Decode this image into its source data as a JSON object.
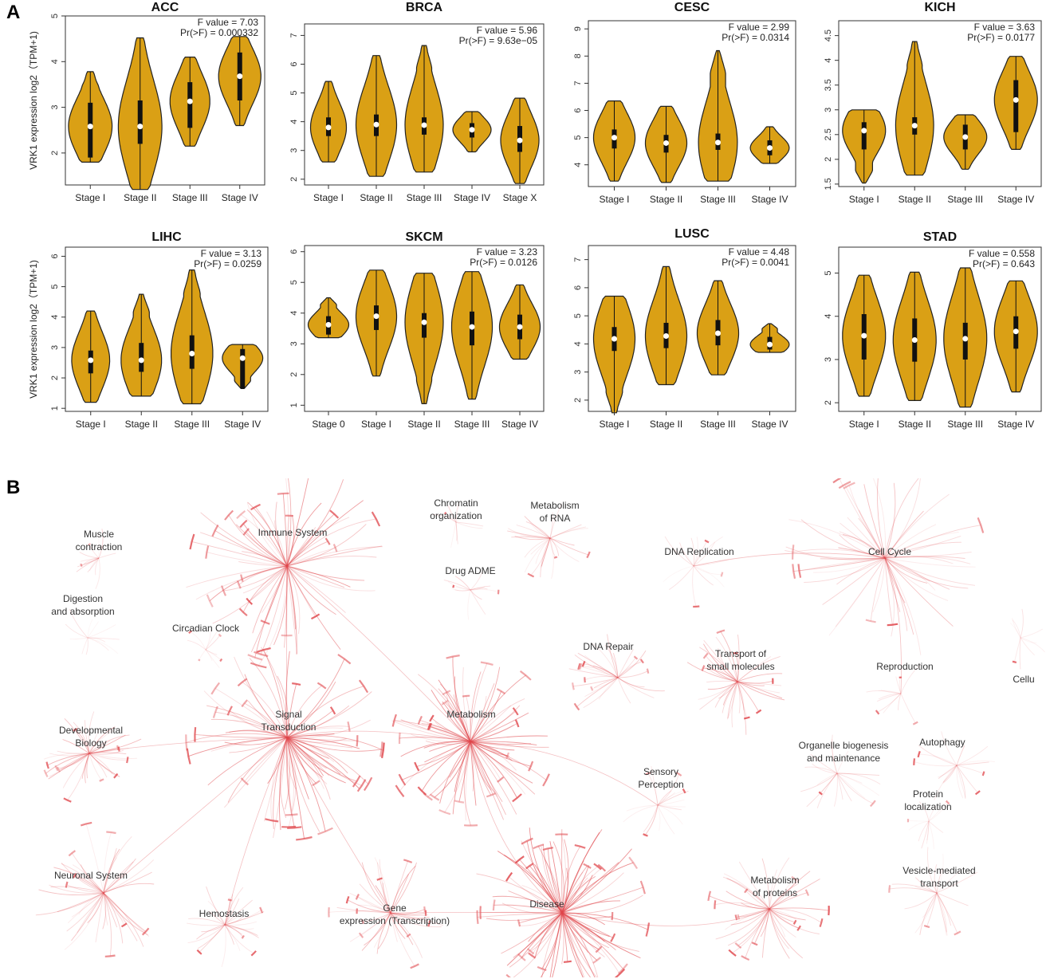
{
  "panels": {
    "a": "A",
    "b": "B"
  },
  "colors": {
    "violin_fill": "#DAA015",
    "violin_stroke": "#222222",
    "pathway": "#E0474C"
  },
  "chart_data": [
    {
      "type": "violin",
      "title": "ACC",
      "ylabel": "VRK1 expression log2（TPM+1)",
      "f_value": "F value = 7.03",
      "p_value": "Pr(>F) = 0.000332",
      "ylim": [
        1.3,
        5.0
      ],
      "yticks": [
        2,
        3,
        4,
        5
      ],
      "categories": [
        "Stage I",
        "Stage II",
        "Stage III",
        "Stage IV"
      ],
      "medians": [
        2.58,
        2.58,
        3.13,
        3.68
      ],
      "q1": [
        1.9,
        2.2,
        2.55,
        3.15
      ],
      "q3": [
        3.1,
        3.15,
        3.55,
        4.2
      ],
      "mins": [
        1.8,
        1.2,
        2.15,
        2.6
      ],
      "maxs": [
        3.78,
        4.52,
        4.1,
        4.55
      ],
      "widths": [
        0.35,
        0.35,
        0.32,
        0.34
      ]
    },
    {
      "type": "violin",
      "title": "BRCA",
      "ylabel": "",
      "f_value": "F value = 5.96",
      "p_value": "Pr(>F) = 9.63e−05",
      "ylim": [
        1.8,
        7.4
      ],
      "yticks": [
        2,
        3,
        4,
        5,
        6,
        7
      ],
      "categories": [
        "Stage I",
        "Stage II",
        "Stage III",
        "Stage IV",
        "Stage X"
      ],
      "medians": [
        3.8,
        3.9,
        3.88,
        3.72,
        3.35
      ],
      "q1": [
        3.5,
        3.5,
        3.55,
        3.45,
        2.95
      ],
      "q3": [
        4.15,
        4.25,
        4.15,
        3.95,
        3.85
      ],
      "mins": [
        2.6,
        2.1,
        2.25,
        2.95,
        1.85
      ],
      "maxs": [
        5.4,
        6.3,
        6.65,
        4.35,
        4.82
      ],
      "widths": [
        0.3,
        0.34,
        0.32,
        0.32,
        0.32
      ]
    },
    {
      "type": "violin",
      "title": "CESC",
      "ylabel": "",
      "f_value": "F value = 2.99",
      "p_value": "Pr(>F) = 0.0314",
      "ylim": [
        3.2,
        9.3
      ],
      "yticks": [
        4,
        5,
        6,
        7,
        8,
        9
      ],
      "categories": [
        "Stage I",
        "Stage II",
        "Stage III",
        "Stage IV"
      ],
      "medians": [
        5.0,
        4.8,
        4.82,
        4.62
      ],
      "q1": [
        4.6,
        4.45,
        4.55,
        4.35
      ],
      "q3": [
        5.3,
        5.1,
        5.15,
        4.9
      ],
      "mins": [
        3.4,
        3.35,
        3.4,
        4.05
      ],
      "maxs": [
        6.35,
        6.15,
        8.2,
        5.4
      ],
      "widths": [
        0.32,
        0.32,
        0.3,
        0.3
      ]
    },
    {
      "type": "violin",
      "title": "KICH",
      "ylabel": "",
      "f_value": "F value = 3.63",
      "p_value": "Pr(>F) = 0.0177",
      "ylim": [
        1.45,
        4.8
      ],
      "yticks": [
        1.5,
        2.0,
        2.5,
        3.0,
        3.5,
        4.0,
        4.5
      ],
      "categories": [
        "Stage I",
        "Stage II",
        "Stage III",
        "Stage IV"
      ],
      "medians": [
        2.58,
        2.68,
        2.45,
        3.2
      ],
      "q1": [
        2.2,
        2.5,
        2.2,
        2.55
      ],
      "q3": [
        2.75,
        2.85,
        2.7,
        3.6
      ],
      "mins": [
        1.52,
        1.68,
        1.8,
        2.2
      ],
      "maxs": [
        3.0,
        4.38,
        2.9,
        4.08
      ],
      "widths": [
        0.34,
        0.3,
        0.34,
        0.34
      ]
    },
    {
      "type": "violin",
      "title": "LIHC",
      "ylabel": "VRK1 expression log2（TPM+1)",
      "f_value": "F value = 3.13",
      "p_value": "Pr(>F) = 0.0259",
      "ylim": [
        0.9,
        6.3
      ],
      "yticks": [
        1,
        2,
        3,
        4,
        5,
        6
      ],
      "categories": [
        "Stage I",
        "Stage II",
        "Stage III",
        "Stage IV"
      ],
      "medians": [
        2.58,
        2.58,
        2.8,
        2.65
      ],
      "q1": [
        2.15,
        2.2,
        2.3,
        1.65
      ],
      "q3": [
        2.9,
        3.15,
        3.4,
        2.95
      ],
      "mins": [
        1.2,
        1.4,
        1.15,
        1.65
      ],
      "maxs": [
        4.2,
        4.75,
        5.55,
        3.1
      ],
      "widths": [
        0.3,
        0.32,
        0.33,
        0.32
      ]
    },
    {
      "type": "violin",
      "title": "SKCM",
      "ylabel": "",
      "f_value": "F value = 3.23",
      "p_value": "Pr(>F) = 0.0126",
      "ylim": [
        0.8,
        6.2
      ],
      "yticks": [
        1,
        2,
        3,
        4,
        5,
        6
      ],
      "categories": [
        "Stage 0",
        "Stage I",
        "Stage II",
        "Stage III",
        "Stage IV"
      ],
      "medians": [
        3.62,
        3.9,
        3.7,
        3.55,
        3.55
      ],
      "q1": [
        3.3,
        3.45,
        3.2,
        2.95,
        3.15
      ],
      "q3": [
        3.9,
        4.25,
        4.0,
        4.05,
        3.95
      ],
      "mins": [
        3.2,
        1.95,
        1.05,
        1.2,
        2.5
      ],
      "maxs": [
        4.5,
        5.4,
        5.3,
        5.35,
        4.92
      ],
      "widths": [
        0.34,
        0.34,
        0.32,
        0.34,
        0.34
      ]
    },
    {
      "type": "violin",
      "title": "LUSC",
      "ylabel": "",
      "f_value": "F value = 4.48",
      "p_value": "Pr(>F) = 0.0041",
      "ylim": [
        1.6,
        7.5
      ],
      "yticks": [
        2,
        3,
        4,
        5,
        6,
        7
      ],
      "categories": [
        "Stage I",
        "Stage II",
        "Stage III",
        "Stage IV"
      ],
      "medians": [
        4.18,
        4.28,
        4.38,
        3.98
      ],
      "q1": [
        3.75,
        3.85,
        3.95,
        3.8
      ],
      "q3": [
        4.6,
        4.75,
        4.85,
        4.25
      ],
      "mins": [
        1.55,
        2.55,
        2.9,
        3.7
      ],
      "maxs": [
        5.7,
        6.75,
        6.25,
        4.72
      ],
      "widths": [
        0.32,
        0.32,
        0.32,
        0.3
      ]
    },
    {
      "type": "violin",
      "title": "STAD",
      "ylabel": "",
      "f_value": "F value = 0.558",
      "p_value": "Pr(>F) = 0.643",
      "ylim": [
        1.8,
        5.6
      ],
      "yticks": [
        2,
        3,
        4,
        5
      ],
      "categories": [
        "Stage I",
        "Stage II",
        "Stage III",
        "Stage IV"
      ],
      "medians": [
        3.55,
        3.45,
        3.48,
        3.65
      ],
      "q1": [
        3.0,
        2.95,
        3.0,
        3.25
      ],
      "q3": [
        4.05,
        3.95,
        3.85,
        4.0
      ],
      "mins": [
        2.15,
        2.05,
        1.9,
        2.25
      ],
      "maxs": [
        4.95,
        5.02,
        5.12,
        4.82
      ],
      "widths": [
        0.34,
        0.34,
        0.34,
        0.34
      ]
    }
  ],
  "reactome": {
    "labels": [
      "Muscle contraction",
      "Digestion and absorption",
      "Immune System",
      "Circadian Clock",
      "Signal Transduction",
      "Developmental Biology",
      "Neuronal System",
      "Hemostasis",
      "Gene expression (Transcription)",
      "Chromatin organization",
      "Drug ADME",
      "Metabolism of RNA",
      "Metabolism",
      "Disease",
      "DNA Replication",
      "DNA Repair",
      "Sensory Perception",
      "Transport of small molecules",
      "Metabolism of proteins",
      "Cell Cycle",
      "Reproduction",
      "Organelle biogenesis and maintenance",
      "Autophagy",
      "Protein localization",
      "Vesicle-mediated transport",
      "Cellu"
    ]
  }
}
